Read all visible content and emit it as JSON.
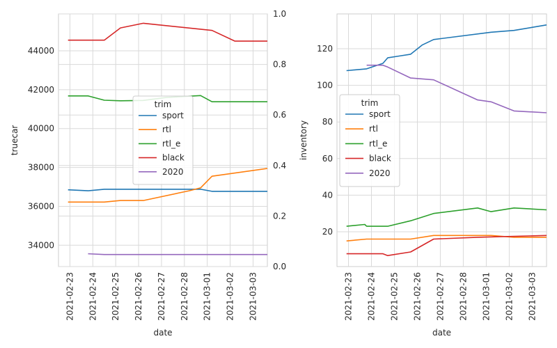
{
  "chart_data": [
    {
      "type": "line",
      "xlabel": "date",
      "ylabel": "truecar",
      "x_ticks": [
        "2021-02-23",
        "2021-02-24",
        "2021-02-25",
        "2021-02-26",
        "2021-02-27",
        "2021-02-28",
        "2021-03-01",
        "2021-03-02",
        "2021-03-03"
      ],
      "y_ticks": [
        34000,
        36000,
        38000,
        40000,
        42000,
        44000
      ],
      "y2_ticks": [
        "0.0",
        "0.2",
        "0.4",
        "0.6",
        "0.8",
        "1.0"
      ],
      "ylim": [
        32900,
        45900
      ],
      "xlim": [
        "2021-02-22T12:00",
        "2021-03-03T15:00"
      ],
      "legend": {
        "title": "trim",
        "placement": "center"
      },
      "series": [
        {
          "name": "sport",
          "color": "#1f77b4",
          "points": [
            [
              "2021-02-22T22:00",
              36850
            ],
            [
              "2021-02-23T19:00",
              36800
            ],
            [
              "2021-02-24T12:00",
              36880
            ],
            [
              "2021-02-25T05:00",
              36880
            ],
            [
              "2021-02-26T05:00",
              36880
            ],
            [
              "2021-02-27T05:00",
              36880
            ],
            [
              "2021-02-28T05:00",
              36880
            ],
            [
              "2021-02-28T17:00",
              36880
            ],
            [
              "2021-03-01T05:00",
              36770
            ],
            [
              "2021-03-03T15:00",
              36770
            ]
          ]
        },
        {
          "name": "rtl",
          "color": "#ff7f0e",
          "points": [
            [
              "2021-02-22T22:00",
              36220
            ],
            [
              "2021-02-24T12:00",
              36220
            ],
            [
              "2021-02-25T05:00",
              36300
            ],
            [
              "2021-02-26T05:00",
              36300
            ],
            [
              "2021-02-28T05:00",
              36800
            ],
            [
              "2021-02-28T17:00",
              36950
            ],
            [
              "2021-03-01T05:00",
              37550
            ],
            [
              "2021-03-03T15:00",
              37950
            ]
          ]
        },
        {
          "name": "rtl_e",
          "color": "#2ca02c",
          "points": [
            [
              "2021-02-22T22:00",
              41680
            ],
            [
              "2021-02-23T19:00",
              41680
            ],
            [
              "2021-02-24T12:00",
              41460
            ],
            [
              "2021-02-25T05:00",
              41430
            ],
            [
              "2021-02-26T05:00",
              41450
            ],
            [
              "2021-02-27T05:00",
              41600
            ],
            [
              "2021-02-28T17:00",
              41700
            ],
            [
              "2021-03-01T05:00",
              41380
            ],
            [
              "2021-03-03T15:00",
              41380
            ]
          ]
        },
        {
          "name": "black",
          "color": "#d62728",
          "points": [
            [
              "2021-02-22T22:00",
              44550
            ],
            [
              "2021-02-24T12:00",
              44550
            ],
            [
              "2021-02-25T05:00",
              45180
            ],
            [
              "2021-02-26T05:00",
              45420
            ],
            [
              "2021-03-01T05:00",
              45050
            ],
            [
              "2021-03-02T05:00",
              44500
            ],
            [
              "2021-03-03T15:00",
              44500
            ]
          ]
        },
        {
          "name": "2020",
          "color": "#9467bd",
          "points": [
            [
              "2021-02-23T19:00",
              33560
            ],
            [
              "2021-02-24T12:00",
              33520
            ],
            [
              "2021-02-25T05:00",
              33520
            ],
            [
              "2021-03-03T15:00",
              33520
            ]
          ]
        }
      ]
    },
    {
      "type": "line",
      "xlabel": "date",
      "ylabel": "inventory",
      "x_ticks": [
        "2021-02-23",
        "2021-02-24",
        "2021-02-25",
        "2021-02-26",
        "2021-02-27",
        "2021-02-28",
        "2021-03-01",
        "2021-03-02",
        "2021-03-03"
      ],
      "y_ticks": [
        20,
        40,
        60,
        80,
        100,
        120
      ],
      "ylim": [
        1,
        139
      ],
      "xlim": [
        "2021-02-22T12:00",
        "2021-03-03T15:00"
      ],
      "legend": {
        "title": "trim",
        "placement": "center-left"
      },
      "series": [
        {
          "name": "sport",
          "color": "#1f77b4",
          "points": [
            [
              "2021-02-22T22:00",
              108
            ],
            [
              "2021-02-23T19:00",
              109
            ],
            [
              "2021-02-24T12:00",
              112
            ],
            [
              "2021-02-24T17:00",
              115
            ],
            [
              "2021-02-25T05:00",
              116
            ],
            [
              "2021-02-25T17:00",
              117
            ],
            [
              "2021-02-26T05:00",
              122
            ],
            [
              "2021-02-26T17:00",
              125
            ],
            [
              "2021-03-01T05:00",
              129
            ],
            [
              "2021-03-02T05:00",
              130
            ],
            [
              "2021-03-03T15:00",
              133
            ]
          ]
        },
        {
          "name": "rtl",
          "color": "#ff7f0e",
          "points": [
            [
              "2021-02-22T22:00",
              15
            ],
            [
              "2021-02-23T19:00",
              16
            ],
            [
              "2021-02-25T17:00",
              16
            ],
            [
              "2021-02-26T17:00",
              18
            ],
            [
              "2021-03-01T05:00",
              18
            ],
            [
              "2021-03-02T05:00",
              17
            ],
            [
              "2021-03-03T15:00",
              17
            ]
          ]
        },
        {
          "name": "rtl_e",
          "color": "#2ca02c",
          "points": [
            [
              "2021-02-22T22:00",
              23
            ],
            [
              "2021-02-23T17:00",
              24
            ],
            [
              "2021-02-23T19:00",
              23
            ],
            [
              "2021-02-24T17:00",
              23
            ],
            [
              "2021-02-25T17:00",
              26
            ],
            [
              "2021-02-26T17:00",
              30
            ],
            [
              "2021-02-28T15:00",
              33
            ],
            [
              "2021-03-01T05:00",
              31
            ],
            [
              "2021-03-02T05:00",
              33
            ],
            [
              "2021-03-03T15:00",
              32
            ]
          ]
        },
        {
          "name": "black",
          "color": "#d62728",
          "points": [
            [
              "2021-02-22T22:00",
              8
            ],
            [
              "2021-02-24T12:00",
              8
            ],
            [
              "2021-02-24T17:00",
              7
            ],
            [
              "2021-02-25T17:00",
              9
            ],
            [
              "2021-02-26T17:00",
              16
            ],
            [
              "2021-02-28T15:00",
              17
            ],
            [
              "2021-03-03T15:00",
              18
            ]
          ]
        },
        {
          "name": "2020",
          "color": "#9467bd",
          "points": [
            [
              "2021-02-23T19:00",
              111
            ],
            [
              "2021-02-24T12:00",
              111
            ],
            [
              "2021-02-24T17:00",
              110
            ],
            [
              "2021-02-25T17:00",
              104
            ],
            [
              "2021-02-26T17:00",
              103
            ],
            [
              "2021-02-28T15:00",
              92
            ],
            [
              "2021-03-01T05:00",
              91
            ],
            [
              "2021-03-02T05:00",
              86
            ],
            [
              "2021-03-03T15:00",
              85
            ]
          ]
        }
      ]
    }
  ]
}
